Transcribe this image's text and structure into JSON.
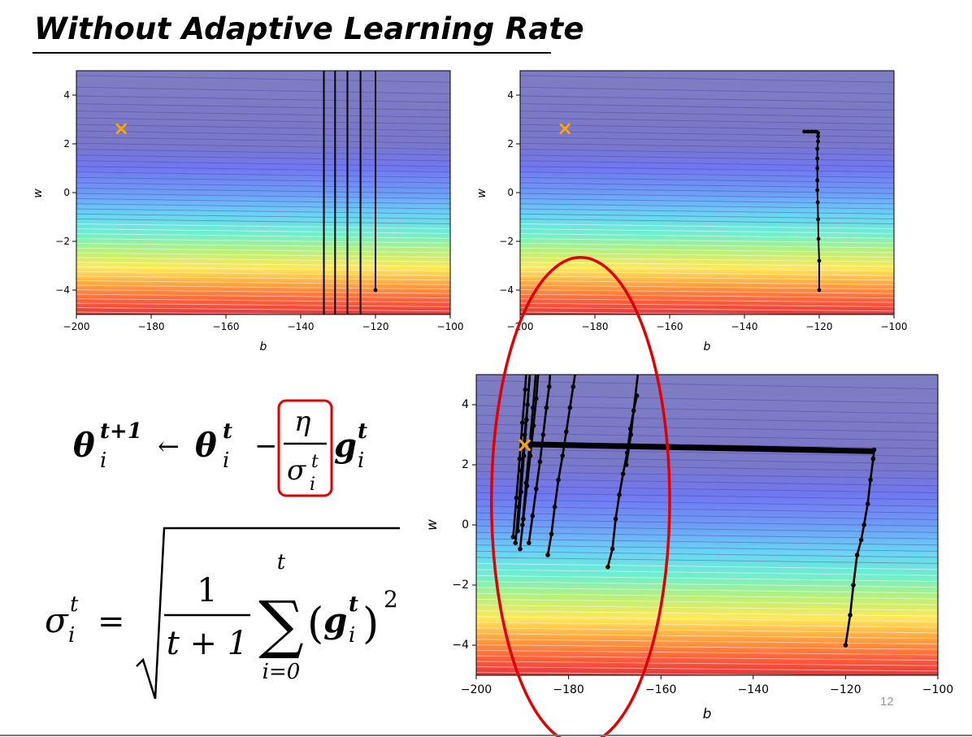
{
  "slide": {
    "title": "Without Adaptive Learning Rate",
    "page_number": "12"
  },
  "equations": {
    "update": {
      "lhs_symbol": "θ",
      "lhs_sub": "i",
      "lhs_sup": "t+1",
      "arrow": "←",
      "theta": "θ",
      "theta_sub": "i",
      "theta_sup": "t",
      "minus": "−",
      "numerator": "η",
      "denominator": "σ",
      "den_sub": "i",
      "den_sup": "t",
      "grad": "g",
      "grad_sub": "i",
      "grad_sup": "t"
    },
    "sigma_def": {
      "lhs": "σ",
      "lhs_sub": "i",
      "lhs_sup": "t",
      "equals": "=",
      "frac_num": "1",
      "frac_den": "t + 1",
      "sum_symbol": "∑",
      "sum_upper": "t",
      "sum_lower": "i=0",
      "lparen": "(",
      "rparen": ")",
      "g": "g",
      "g_sub": "i",
      "g_sup": "t",
      "exponent": "2"
    }
  },
  "chart_data": [
    {
      "type": "contour",
      "xlabel": "b",
      "ylabel": "w",
      "xlim": [
        -200,
        -100
      ],
      "ylim": [
        -5,
        5
      ],
      "xticks": [
        "−200",
        "−180",
        "−160",
        "−140",
        "−120",
        "−100"
      ],
      "yticks": [
        "−4",
        "−2",
        "0",
        "2",
        "4"
      ],
      "target_marker": {
        "symbol": "×",
        "x": -188,
        "y": 2.67,
        "color": "#ffa500"
      },
      "paths": [
        {
          "points": [
            [
              -120,
              -4
            ],
            [
              -120,
              5
            ]
          ],
          "dots": [
            [
              -120,
              -4
            ]
          ]
        },
        {
          "points": [
            [
              -124,
              -5
            ],
            [
              -124,
              5
            ]
          ],
          "dots": []
        },
        {
          "points": [
            [
              -127.5,
              -5
            ],
            [
              -127.5,
              5
            ]
          ],
          "dots": []
        },
        {
          "points": [
            [
              -130.8,
              -5
            ],
            [
              -130.8,
              5
            ]
          ],
          "dots": []
        },
        {
          "points": [
            [
              -133.8,
              -5
            ],
            [
              -133.8,
              5
            ]
          ],
          "dots": []
        }
      ]
    },
    {
      "type": "contour",
      "xlabel": "b",
      "ylabel": "w",
      "xlim": [
        -200,
        -100
      ],
      "ylim": [
        -5,
        5
      ],
      "xticks": [
        "−200",
        "−180",
        "−160",
        "−140",
        "−120",
        "−100"
      ],
      "yticks": [
        "−4",
        "−2",
        "0",
        "2",
        "4"
      ],
      "target_marker": {
        "symbol": "×",
        "x": -188,
        "y": 2.67,
        "color": "#ffa500"
      },
      "paths": [
        {
          "points": [
            [
              -120,
              -4
            ],
            [
              -120,
              -2.8
            ],
            [
              -120.2,
              -1.9
            ],
            [
              -120.3,
              -1.1
            ],
            [
              -120.4,
              -0.4
            ],
            [
              -120.5,
              0.1
            ],
            [
              -120.5,
              0.5
            ],
            [
              -120.5,
              1.0
            ],
            [
              -120.5,
              1.4
            ],
            [
              -120.5,
              1.8
            ],
            [
              -120.3,
              2.1
            ],
            [
              -120.3,
              2.3
            ],
            [
              -120.3,
              2.45
            ],
            [
              -121,
              2.5
            ],
            [
              -122,
              2.5
            ],
            [
              -123,
              2.5
            ],
            [
              -124,
              2.5
            ]
          ],
          "dots": [
            [
              -120,
              -4
            ],
            [
              -120,
              -2.8
            ],
            [
              -120.2,
              -1.9
            ],
            [
              -120.3,
              -1.1
            ],
            [
              -120.4,
              -0.4
            ],
            [
              -120.5,
              0.1
            ],
            [
              -120.5,
              0.5
            ],
            [
              -120.5,
              1.0
            ],
            [
              -120.5,
              1.4
            ],
            [
              -120.5,
              1.8
            ],
            [
              -120.3,
              2.1
            ],
            [
              -120.3,
              2.3
            ],
            [
              -120.3,
              2.45
            ],
            [
              -121,
              2.5
            ],
            [
              -122,
              2.5
            ],
            [
              -123,
              2.5
            ],
            [
              -124,
              2.5
            ]
          ]
        }
      ]
    },
    {
      "type": "contour",
      "xlabel": "b",
      "ylabel": "w",
      "xlim": [
        -200,
        -100
      ],
      "ylim": [
        -5,
        5
      ],
      "xticks": [
        "−200",
        "−180",
        "−160",
        "−140",
        "−120",
        "−100"
      ],
      "yticks": [
        "−4",
        "−2",
        "0",
        "2",
        "4"
      ],
      "target_marker": {
        "symbol": "×",
        "x": -189.5,
        "y": 2.67,
        "color": "#ffa500"
      },
      "highlight_ellipse": {
        "cx": -177.4,
        "cy": 0.8,
        "rx": 19.3,
        "ry": 8.1,
        "color": "#e00000"
      },
      "paths": [
        {
          "points": [
            [
              -120,
              -4
            ],
            [
              -119,
              -3
            ],
            [
              -118.3,
              -2
            ],
            [
              -117.5,
              -1
            ],
            [
              -116.6,
              -0.5
            ],
            [
              -116,
              0
            ],
            [
              -115.2,
              0.7
            ],
            [
              -114.6,
              1.5
            ],
            [
              -114,
              2.2
            ],
            [
              -113.8,
              2.5
            ],
            [
              -115,
              2.5
            ],
            [
              -125,
              2.55
            ],
            [
              -140,
              2.6
            ],
            [
              -160,
              2.65
            ],
            [
              -175,
              2.67
            ],
            [
              -188,
              2.7
            ]
          ],
          "dots": [
            [
              -120,
              -4
            ],
            [
              -119,
              -3
            ],
            [
              -118.3,
              -2
            ],
            [
              -117.5,
              -1
            ],
            [
              -116.6,
              -0.5
            ],
            [
              -116,
              0
            ],
            [
              -115.2,
              0.7
            ],
            [
              -114.6,
              1.5
            ],
            [
              -114,
              2.2
            ],
            [
              -113.8,
              2.5
            ]
          ]
        },
        {
          "points": [
            [
              -171.5,
              -1.4
            ],
            [
              -170.5,
              -0.8
            ],
            [
              -169.8,
              0.2
            ],
            [
              -169,
              1.0
            ],
            [
              -168.2,
              1.7
            ],
            [
              -167.3,
              2.4
            ],
            [
              -166.6,
              3.2
            ],
            [
              -165.9,
              3.8
            ],
            [
              -165.2,
              4.3
            ]
          ],
          "dots": [
            [
              -171.5,
              -1.4
            ],
            [
              -170.5,
              -0.8
            ],
            [
              -169.8,
              0.2
            ],
            [
              -169,
              1.0
            ],
            [
              -168.2,
              1.7
            ],
            [
              -167.3,
              2.4
            ],
            [
              -166.6,
              3.2
            ],
            [
              -165.9,
              3.8
            ],
            [
              -165.2,
              4.3
            ]
          ]
        },
        {
          "points": [
            [
              -167.5,
              2.0
            ],
            [
              -166.5,
              3.0
            ],
            [
              -165.0,
              5.0
            ]
          ],
          "dots": [
            [
              -167.5,
              2.0
            ],
            [
              -166.5,
              3.0
            ]
          ]
        },
        {
          "points": [
            [
              -184.5,
              -1.0
            ],
            [
              -183.7,
              -0.3
            ],
            [
              -183,
              0.6
            ],
            [
              -182.2,
              1.5
            ],
            [
              -181.3,
              2.3
            ],
            [
              -180.5,
              3.1
            ],
            [
              -179.7,
              3.9
            ],
            [
              -179,
              4.6
            ],
            [
              -178.6,
              5.0
            ]
          ],
          "dots": [
            [
              -184.5,
              -1.0
            ],
            [
              -183.7,
              -0.3
            ],
            [
              -183,
              0.6
            ],
            [
              -182.2,
              1.5
            ],
            [
              -181.3,
              2.3
            ],
            [
              -180.5,
              3.1
            ],
            [
              -179.7,
              3.9
            ],
            [
              -179,
              4.6
            ]
          ]
        },
        {
          "points": [
            [
              -188.6,
              -0.6
            ],
            [
              -187.8,
              0.3
            ],
            [
              -187,
              1.2
            ],
            [
              -186.2,
              2.1
            ],
            [
              -185.5,
              3.0
            ],
            [
              -184.8,
              3.9
            ],
            [
              -184.2,
              4.6
            ],
            [
              -184,
              5.0
            ]
          ],
          "dots": [
            [
              -188.6,
              -0.6
            ],
            [
              -187.8,
              0.3
            ],
            [
              -187,
              1.2
            ],
            [
              -186.2,
              2.1
            ],
            [
              -185.5,
              3.0
            ],
            [
              -184.8,
              3.9
            ],
            [
              -184.2,
              4.6
            ]
          ]
        },
        {
          "points": [
            [
              -190.5,
              -0.8
            ],
            [
              -189.8,
              0.2
            ],
            [
              -189,
              1.3
            ],
            [
              -188.3,
              2.3
            ],
            [
              -187.6,
              3.3
            ],
            [
              -187,
              4.2
            ],
            [
              -186.6,
              5.0
            ]
          ],
          "dots": [
            [
              -190.5,
              -0.8
            ],
            [
              -189.8,
              0.2
            ],
            [
              -189,
              1.3
            ],
            [
              -188.3,
              2.3
            ],
            [
              -187.6,
              3.3
            ],
            [
              -187,
              4.2
            ]
          ]
        },
        {
          "points": [
            [
              -191.5,
              -0.6
            ],
            [
              -190.8,
              0.6
            ],
            [
              -190.2,
              1.8
            ],
            [
              -189.5,
              3.0
            ],
            [
              -188.9,
              4.0
            ],
            [
              -188.4,
              5.0
            ]
          ],
          "dots": [
            [
              -191.5,
              -0.6
            ],
            [
              -190.8,
              0.6
            ],
            [
              -190.2,
              1.8
            ],
            [
              -189.5,
              3.0
            ],
            [
              -188.9,
              4.0
            ]
          ]
        },
        {
          "points": [
            [
              -192,
              -0.4
            ],
            [
              -191.3,
              0.9
            ],
            [
              -190.6,
              2.2
            ],
            [
              -190,
              3.4
            ],
            [
              -189.4,
              4.5
            ],
            [
              -189.2,
              5.0
            ]
          ],
          "dots": [
            [
              -192,
              -0.4
            ],
            [
              -191.3,
              0.9
            ],
            [
              -190.6,
              2.2
            ],
            [
              -190,
              3.4
            ],
            [
              -189.4,
              4.5
            ]
          ]
        },
        {
          "points": [
            [
              -191,
              -0.2
            ],
            [
              -190.3,
              1.1
            ],
            [
              -189.7,
              2.3
            ],
            [
              -189.1,
              3.5
            ],
            [
              -188.6,
              4.6
            ],
            [
              -188.4,
              5.0
            ]
          ],
          "dots": [
            [
              -191,
              -0.2
            ],
            [
              -190.3,
              1.1
            ],
            [
              -189.7,
              2.3
            ],
            [
              -189.1,
              3.5
            ]
          ]
        },
        {
          "points": [
            [
              -190,
              0.0
            ],
            [
              -189.2,
              1.4
            ],
            [
              -188.4,
              2.7
            ],
            [
              -187.7,
              3.9
            ],
            [
              -187.1,
              5.0
            ]
          ],
          "dots": [
            [
              -190,
              0.0
            ],
            [
              -189.2,
              1.4
            ],
            [
              -188.4,
              2.7
            ],
            [
              -187.7,
              3.9
            ]
          ]
        }
      ]
    }
  ]
}
